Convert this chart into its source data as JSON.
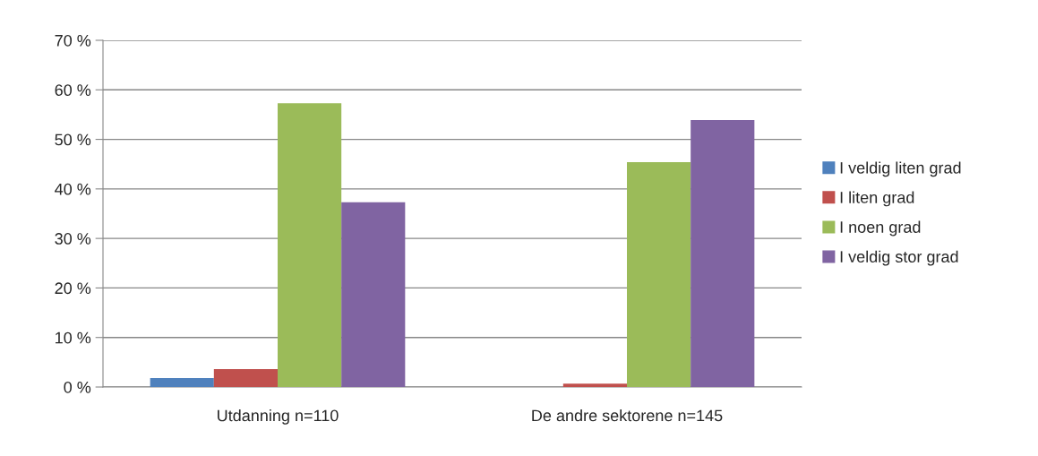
{
  "chart_data": {
    "type": "bar",
    "categories": [
      "Utdanning n=110",
      "De andre sektorene n=145"
    ],
    "series": [
      {
        "name": "I veldig liten grad",
        "color": "#4f81bd",
        "values": [
          1.8,
          0
        ]
      },
      {
        "name": "I liten grad",
        "color": "#c0504d",
        "values": [
          3.6,
          0.7
        ]
      },
      {
        "name": "I noen grad",
        "color": "#9bbb59",
        "values": [
          57.3,
          45.4
        ]
      },
      {
        "name": "I veldig stor grad",
        "color": "#8064a2",
        "values": [
          37.3,
          53.9
        ]
      }
    ],
    "ylim": [
      0,
      70
    ],
    "yticks": [
      {
        "value": 0,
        "label": "0 %"
      },
      {
        "value": 10,
        "label": "10 %"
      },
      {
        "value": 20,
        "label": "20 %"
      },
      {
        "value": 30,
        "label": "30 %"
      },
      {
        "value": 40,
        "label": "40 %"
      },
      {
        "value": 50,
        "label": "50 %"
      },
      {
        "value": 60,
        "label": "60 %"
      },
      {
        "value": 70,
        "label": "70 %"
      }
    ],
    "grid": "y",
    "legend": "right"
  }
}
